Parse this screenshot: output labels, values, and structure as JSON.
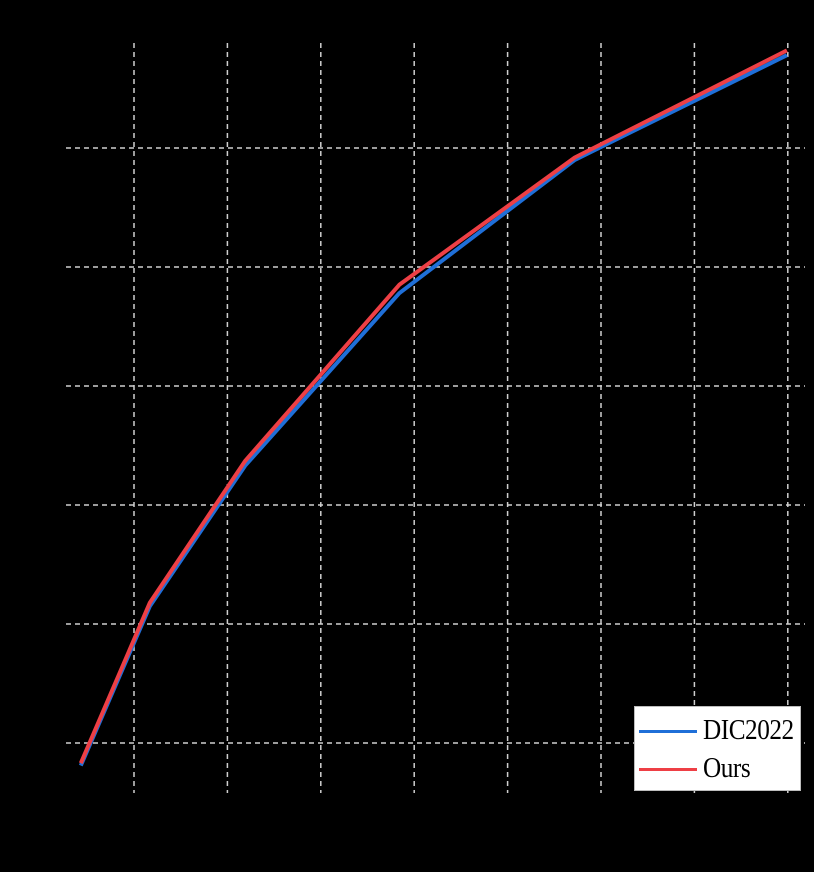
{
  "chart_data": {
    "type": "line",
    "title": "",
    "xlabel": "",
    "ylabel": "",
    "note": "Axis tick labels and axis titles are rendered black on a black background and are not legible; coordinates below are expressed in gridline units (x: 0 = first vertical gridline, y: 0 = lowest horizontal gridline).",
    "grid": true,
    "grid_style": "dashed light gray",
    "x_gridlines": 8,
    "y_gridlines": 6,
    "xlim": [
      -0.73,
      7.2
    ],
    "ylim": [
      -0.42,
      5.89
    ],
    "legend_position": "lower right",
    "series": [
      {
        "name": "DIC2022",
        "color": "#1f6fd8",
        "x": [
          -0.57,
          0.17,
          1.19,
          2.84,
          4.72,
          6.99
        ],
        "y": [
          -0.19,
          1.15,
          2.33,
          3.78,
          4.9,
          5.78
        ]
      },
      {
        "name": "Ours",
        "color": "#ee3f45",
        "x": [
          -0.57,
          0.17,
          1.19,
          2.84,
          4.72,
          6.99
        ],
        "y": [
          -0.17,
          1.18,
          2.37,
          3.85,
          4.92,
          5.82
        ]
      }
    ]
  },
  "legend": {
    "items": [
      {
        "label": "DIC2022",
        "color": "#1f6fd8"
      },
      {
        "label": "Ours",
        "color": "#ee3f45"
      }
    ]
  }
}
